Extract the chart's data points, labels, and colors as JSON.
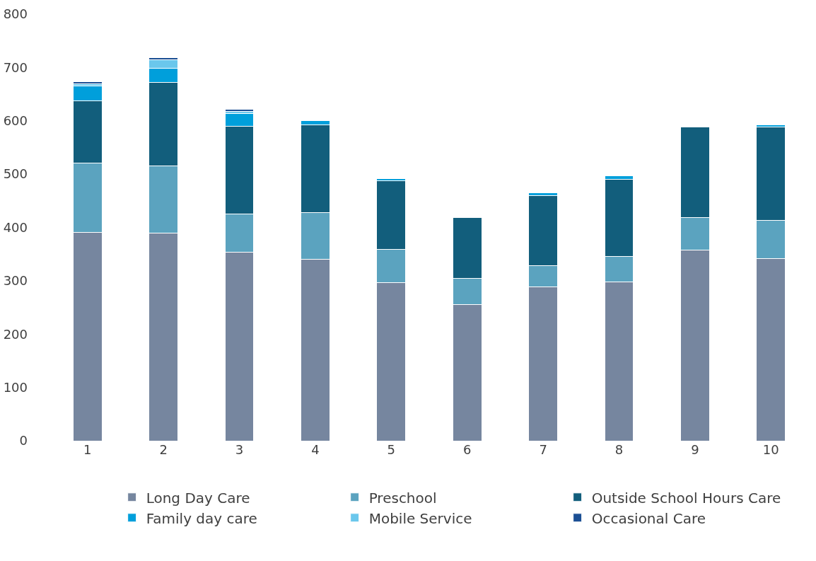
{
  "chart_data": {
    "type": "bar",
    "stacked": true,
    "categories": [
      "1",
      "2",
      "3",
      "4",
      "5",
      "6",
      "7",
      "8",
      "9",
      "10"
    ],
    "series": [
      {
        "name": "Long Day Care",
        "color": "#76869f",
        "values": [
          391,
          390,
          353,
          340,
          297,
          255,
          288,
          298,
          357,
          341
        ]
      },
      {
        "name": "Preschool",
        "color": "#5ba3bf",
        "values": [
          130,
          126,
          72,
          88,
          62,
          49,
          41,
          48,
          62,
          72
        ]
      },
      {
        "name": "Outside School Hours Care",
        "color": "#125e7c",
        "values": [
          117,
          156,
          165,
          165,
          128,
          115,
          131,
          144,
          170,
          175
        ]
      },
      {
        "name": "Family day care",
        "color": "#009fdb",
        "values": [
          27,
          27,
          24,
          8,
          5,
          null,
          5,
          7,
          null,
          5
        ]
      },
      {
        "name": "Mobile Service",
        "color": "#6ac7ec",
        "values": [
          4,
          16,
          4,
          null,
          null,
          null,
          null,
          null,
          null,
          null
        ]
      },
      {
        "name": "Occasional Care",
        "color": "#1b4f94",
        "values": [
          4,
          4,
          4,
          null,
          null,
          null,
          null,
          null,
          null,
          null
        ]
      }
    ],
    "ylim": [
      0,
      800
    ],
    "yticks": [
      0,
      100,
      200,
      300,
      400,
      500,
      600,
      700,
      800
    ],
    "grid": false,
    "legend": "bottom"
  }
}
